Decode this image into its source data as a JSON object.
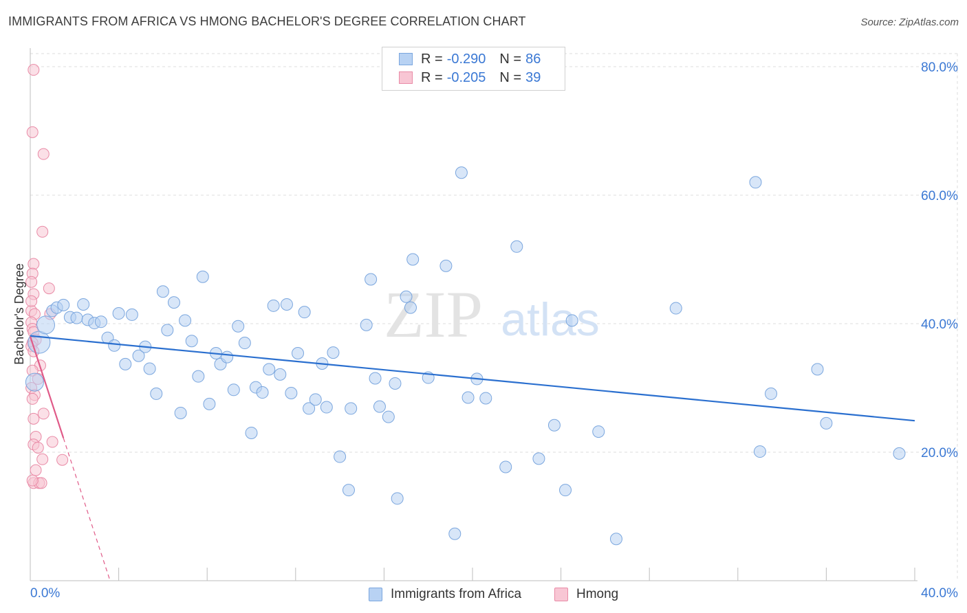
{
  "title": "IMMIGRANTS FROM AFRICA VS HMONG BACHELOR'S DEGREE CORRELATION CHART",
  "source": "Source: ZipAtlas.com",
  "watermark": {
    "zip": "ZIP",
    "atlas": "atlas"
  },
  "legend": {
    "rows": [
      {
        "r_label": "R =",
        "r_value": "-0.290",
        "n_label": "N =",
        "n_value": "86"
      },
      {
        "r_label": "R =",
        "r_value": "-0.205",
        "n_label": "N =",
        "n_value": "39"
      }
    ]
  },
  "bottom_legend": {
    "africa": "Immigrants from Africa",
    "hmong": "Hmong"
  },
  "colors": {
    "africa_fill": "#b8d2f3",
    "africa_stroke": "#7aa6de",
    "africa_line": "#2a6fcf",
    "hmong_fill": "#f8c6d4",
    "hmong_stroke": "#e98aa6",
    "hmong_line": "#e05a88",
    "axis_text": "#3a78d4",
    "grid": "#dddddd"
  },
  "chart_data": {
    "type": "scatter",
    "title": "IMMIGRANTS FROM AFRICA VS HMONG BACHELOR'S DEGREE CORRELATION CHART",
    "xlabel": "",
    "ylabel": "Bachelor's Degree",
    "xlim": [
      0,
      40
    ],
    "ylim": [
      0,
      80
    ],
    "x_tick_labels": [
      "0.0%",
      "40.0%"
    ],
    "y_ticks": [
      20,
      40,
      60,
      80
    ],
    "y_tick_labels": [
      "20.0%",
      "40.0%",
      "60.0%",
      "80.0%"
    ],
    "grid": true,
    "legend_position": "top-center",
    "series": [
      {
        "name": "Immigrants from Africa",
        "R": -0.29,
        "N": 86,
        "trend": {
          "x": [
            0,
            40
          ],
          "y": [
            38.1,
            24.9
          ]
        },
        "points": [
          {
            "x": 0.2,
            "y": 30.9,
            "s": 2
          },
          {
            "x": 0.4,
            "y": 37.1,
            "s": 3
          },
          {
            "x": 0.7,
            "y": 39.8,
            "s": 2
          },
          {
            "x": 1.0,
            "y": 42.0,
            "s": 1
          },
          {
            "x": 1.2,
            "y": 42.5,
            "s": 1
          },
          {
            "x": 1.5,
            "y": 42.9,
            "s": 1
          },
          {
            "x": 1.8,
            "y": 41.0,
            "s": 1
          },
          {
            "x": 2.1,
            "y": 40.9,
            "s": 1
          },
          {
            "x": 2.4,
            "y": 43.0,
            "s": 1
          },
          {
            "x": 2.6,
            "y": 40.6,
            "s": 1
          },
          {
            "x": 2.9,
            "y": 40.1,
            "s": 1
          },
          {
            "x": 3.2,
            "y": 40.3,
            "s": 1
          },
          {
            "x": 3.5,
            "y": 37.8,
            "s": 1
          },
          {
            "x": 3.8,
            "y": 36.6,
            "s": 1
          },
          {
            "x": 4.0,
            "y": 41.6,
            "s": 1
          },
          {
            "x": 4.3,
            "y": 33.7,
            "s": 1
          },
          {
            "x": 4.6,
            "y": 41.4,
            "s": 1
          },
          {
            "x": 4.9,
            "y": 35.0,
            "s": 1
          },
          {
            "x": 5.2,
            "y": 36.4,
            "s": 1
          },
          {
            "x": 5.4,
            "y": 33.0,
            "s": 1
          },
          {
            "x": 5.7,
            "y": 29.1,
            "s": 1
          },
          {
            "x": 6.0,
            "y": 45.0,
            "s": 1
          },
          {
            "x": 6.2,
            "y": 39.0,
            "s": 1
          },
          {
            "x": 6.5,
            "y": 43.3,
            "s": 1
          },
          {
            "x": 6.8,
            "y": 26.1,
            "s": 1
          },
          {
            "x": 7.0,
            "y": 40.5,
            "s": 1
          },
          {
            "x": 7.3,
            "y": 37.3,
            "s": 1
          },
          {
            "x": 7.6,
            "y": 31.8,
            "s": 1
          },
          {
            "x": 7.8,
            "y": 47.3,
            "s": 1
          },
          {
            "x": 8.1,
            "y": 27.5,
            "s": 1
          },
          {
            "x": 8.4,
            "y": 35.4,
            "s": 1
          },
          {
            "x": 8.6,
            "y": 33.7,
            "s": 1
          },
          {
            "x": 8.9,
            "y": 34.8,
            "s": 1
          },
          {
            "x": 9.2,
            "y": 29.7,
            "s": 1
          },
          {
            "x": 9.4,
            "y": 39.6,
            "s": 1
          },
          {
            "x": 9.7,
            "y": 37.0,
            "s": 1
          },
          {
            "x": 10.0,
            "y": 23.0,
            "s": 1
          },
          {
            "x": 10.2,
            "y": 30.1,
            "s": 1
          },
          {
            "x": 10.5,
            "y": 29.3,
            "s": 1
          },
          {
            "x": 10.8,
            "y": 32.9,
            "s": 1
          },
          {
            "x": 11.0,
            "y": 42.8,
            "s": 1
          },
          {
            "x": 11.3,
            "y": 32.1,
            "s": 1
          },
          {
            "x": 11.6,
            "y": 43.0,
            "s": 1
          },
          {
            "x": 11.8,
            "y": 29.2,
            "s": 1
          },
          {
            "x": 12.1,
            "y": 35.4,
            "s": 1
          },
          {
            "x": 12.4,
            "y": 41.8,
            "s": 1
          },
          {
            "x": 12.6,
            "y": 26.8,
            "s": 1
          },
          {
            "x": 12.9,
            "y": 28.2,
            "s": 1
          },
          {
            "x": 13.2,
            "y": 33.8,
            "s": 1
          },
          {
            "x": 13.4,
            "y": 27.0,
            "s": 1
          },
          {
            "x": 13.7,
            "y": 35.5,
            "s": 1
          },
          {
            "x": 14.0,
            "y": 19.3,
            "s": 1
          },
          {
            "x": 14.4,
            "y": 14.1,
            "s": 1
          },
          {
            "x": 14.5,
            "y": 26.8,
            "s": 1
          },
          {
            "x": 15.2,
            "y": 39.8,
            "s": 1
          },
          {
            "x": 15.4,
            "y": 46.9,
            "s": 1
          },
          {
            "x": 15.6,
            "y": 31.5,
            "s": 1
          },
          {
            "x": 15.8,
            "y": 27.1,
            "s": 1
          },
          {
            "x": 16.2,
            "y": 25.5,
            "s": 1
          },
          {
            "x": 16.5,
            "y": 30.7,
            "s": 1
          },
          {
            "x": 16.6,
            "y": 12.8,
            "s": 1
          },
          {
            "x": 17.0,
            "y": 44.2,
            "s": 1
          },
          {
            "x": 17.2,
            "y": 42.5,
            "s": 1
          },
          {
            "x": 17.3,
            "y": 50.0,
            "s": 1
          },
          {
            "x": 18.0,
            "y": 31.6,
            "s": 1
          },
          {
            "x": 18.8,
            "y": 49.0,
            "s": 1
          },
          {
            "x": 19.2,
            "y": 7.3,
            "s": 1
          },
          {
            "x": 19.5,
            "y": 63.5,
            "s": 1
          },
          {
            "x": 19.8,
            "y": 28.5,
            "s": 1
          },
          {
            "x": 20.2,
            "y": 31.4,
            "s": 1
          },
          {
            "x": 20.6,
            "y": 28.4,
            "s": 1
          },
          {
            "x": 21.5,
            "y": 17.7,
            "s": 1
          },
          {
            "x": 22.0,
            "y": 52.0,
            "s": 1
          },
          {
            "x": 23.0,
            "y": 19.0,
            "s": 1
          },
          {
            "x": 23.7,
            "y": 24.2,
            "s": 1
          },
          {
            "x": 24.2,
            "y": 14.1,
            "s": 1
          },
          {
            "x": 24.5,
            "y": 40.5,
            "s": 1
          },
          {
            "x": 25.7,
            "y": 23.2,
            "s": 1
          },
          {
            "x": 26.5,
            "y": 6.5,
            "s": 1
          },
          {
            "x": 29.2,
            "y": 42.4,
            "s": 1
          },
          {
            "x": 32.8,
            "y": 62.0,
            "s": 1
          },
          {
            "x": 33.0,
            "y": 20.1,
            "s": 1
          },
          {
            "x": 33.5,
            "y": 29.1,
            "s": 1
          },
          {
            "x": 35.6,
            "y": 32.9,
            "s": 1
          },
          {
            "x": 36.0,
            "y": 24.5,
            "s": 1
          },
          {
            "x": 39.3,
            "y": 19.8,
            "s": 1
          }
        ]
      },
      {
        "name": "Hmong",
        "R": -0.205,
        "N": 39,
        "trend": {
          "x": [
            0,
            1.5
          ],
          "y": [
            38.0,
            22.2
          ]
        },
        "trend_dashed_extension": {
          "x": [
            1.5,
            3.8
          ],
          "y": [
            22.2,
            -2
          ]
        },
        "points": [
          {
            "x": 0.15,
            "y": 79.5
          },
          {
            "x": 0.1,
            "y": 69.8
          },
          {
            "x": 0.6,
            "y": 66.4
          },
          {
            "x": 0.55,
            "y": 54.3
          },
          {
            "x": 0.15,
            "y": 49.3
          },
          {
            "x": 0.1,
            "y": 47.8
          },
          {
            "x": 0.05,
            "y": 46.5
          },
          {
            "x": 0.85,
            "y": 45.5
          },
          {
            "x": 0.15,
            "y": 44.6
          },
          {
            "x": 0.05,
            "y": 42.0
          },
          {
            "x": 0.2,
            "y": 41.5
          },
          {
            "x": 0.05,
            "y": 40.2
          },
          {
            "x": 0.1,
            "y": 39.2
          },
          {
            "x": 0.15,
            "y": 38.7
          },
          {
            "x": 0.25,
            "y": 37.5
          },
          {
            "x": 0.1,
            "y": 37.0
          },
          {
            "x": 0.05,
            "y": 36.5
          },
          {
            "x": 0.15,
            "y": 35.7
          },
          {
            "x": 0.45,
            "y": 33.5
          },
          {
            "x": 0.1,
            "y": 32.7
          },
          {
            "x": 0.35,
            "y": 31.4
          },
          {
            "x": 0.05,
            "y": 30.0
          },
          {
            "x": 0.2,
            "y": 28.9
          },
          {
            "x": 0.1,
            "y": 28.3
          },
          {
            "x": 0.6,
            "y": 26.0
          },
          {
            "x": 0.15,
            "y": 25.2
          },
          {
            "x": 0.25,
            "y": 22.4
          },
          {
            "x": 0.15,
            "y": 21.2
          },
          {
            "x": 1.0,
            "y": 21.6
          },
          {
            "x": 0.35,
            "y": 20.7
          },
          {
            "x": 0.55,
            "y": 18.9
          },
          {
            "x": 1.45,
            "y": 18.8
          },
          {
            "x": 0.25,
            "y": 17.2
          },
          {
            "x": 0.15,
            "y": 15.2
          },
          {
            "x": 0.4,
            "y": 15.2
          },
          {
            "x": 0.5,
            "y": 15.2
          },
          {
            "x": 0.1,
            "y": 15.6
          },
          {
            "x": 0.9,
            "y": 41.5
          },
          {
            "x": 0.05,
            "y": 43.5
          }
        ]
      }
    ]
  }
}
